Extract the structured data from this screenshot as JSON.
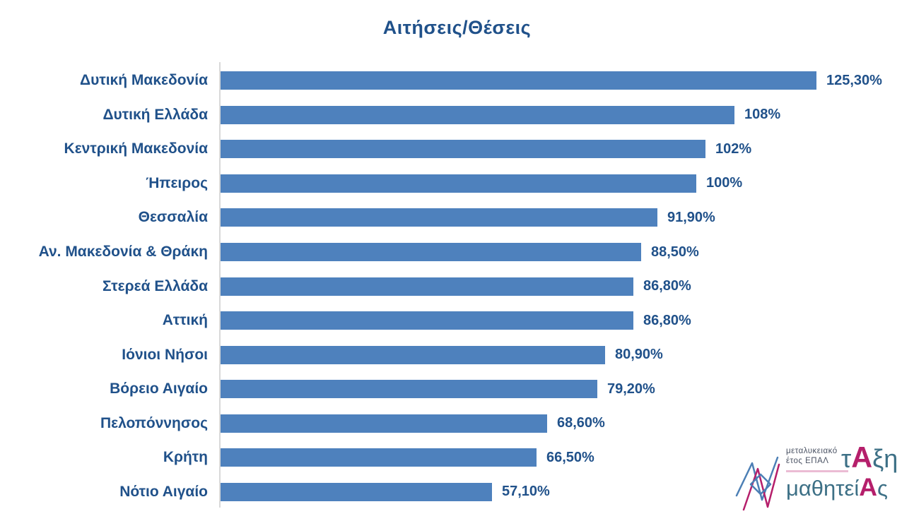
{
  "title": "Αιτήσεις/Θέσεις",
  "colors": {
    "bar": "#4e81bd",
    "text": "#20518a",
    "axis": "#d9d9d9",
    "logo_teal": "#3d7086",
    "logo_magenta": "#b51f6b",
    "logo_pink": "#ebbcd4",
    "logo_gray": "#4a5263"
  },
  "chart_data": {
    "type": "bar",
    "orientation": "horizontal",
    "title": "Αιτήσεις/Θέσεις",
    "xlabel": "",
    "ylabel": "",
    "xlim": [
      0,
      145
    ],
    "grid": false,
    "legend": false,
    "categories": [
      "Δυτική Μακεδονία",
      "Δυτική Ελλάδα",
      "Κεντρική Μακεδονία",
      "Ήπειρος",
      "Θεσσαλία",
      "Αν. Μακεδονία & Θράκη",
      "Στερεά Ελλάδα",
      "Αττική",
      "Ιόνιοι Νήσοι",
      "Βόρειο Αιγαίο",
      "Πελοπόννησος",
      "Κρήτη",
      "Νότιο Αιγαίο"
    ],
    "values": [
      125.3,
      108,
      102,
      100,
      91.9,
      88.5,
      86.8,
      86.8,
      80.9,
      79.2,
      68.6,
      66.5,
      57.1
    ],
    "data_labels": [
      "125,30%",
      "108%",
      "102%",
      "100%",
      "91,90%",
      "88,50%",
      "86,80%",
      "86,80%",
      "80,90%",
      "79,20%",
      "68,60%",
      "66,50%",
      "57,10%"
    ]
  },
  "logo": {
    "small_line1": "μεταλυκειακό",
    "small_line2": "έτος ΕΠΑΛ",
    "word1_pre": "τ",
    "word1_a": "Α",
    "word1_post": "ξη",
    "word2_pre": "μαθητεί",
    "word2_a": "Α",
    "word2_post": "ς"
  }
}
